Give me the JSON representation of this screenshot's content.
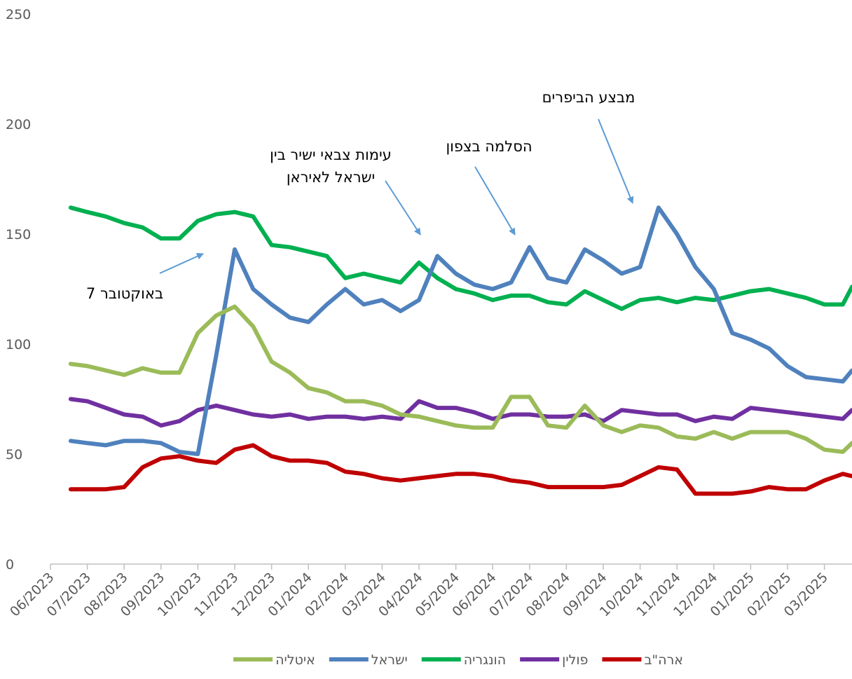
{
  "chart_data": {
    "type": "line",
    "x": [
      0.55,
      1.0,
      1.5,
      2.0,
      2.5,
      3.0,
      3.5,
      4.0,
      4.5,
      5.0,
      5.5,
      6.0,
      6.5,
      7.0,
      7.5,
      8.0,
      8.5,
      9.0,
      9.5,
      10.0,
      10.5,
      11.0,
      11.5,
      12.0,
      12.5,
      13.0,
      13.5,
      14.0,
      14.5,
      15.0,
      15.5,
      16.0,
      16.5,
      17.0,
      17.5,
      18.0,
      18.5,
      19.0,
      19.5,
      20.0,
      20.5,
      21.0,
      21.5,
      21.75
    ],
    "xlim": [
      0,
      21.75
    ],
    "xticks": [
      {
        "value": 0,
        "label": "06/2023"
      },
      {
        "value": 1,
        "label": "07/2023"
      },
      {
        "value": 2,
        "label": "08/2023"
      },
      {
        "value": 3,
        "label": "09/2023"
      },
      {
        "value": 4,
        "label": "10/2023"
      },
      {
        "value": 5,
        "label": "11/2023"
      },
      {
        "value": 6,
        "label": "12/2023"
      },
      {
        "value": 7,
        "label": "01/2024"
      },
      {
        "value": 8,
        "label": "02/2024"
      },
      {
        "value": 9,
        "label": "03/2024"
      },
      {
        "value": 10,
        "label": "04/2024"
      },
      {
        "value": 11,
        "label": "05/2024"
      },
      {
        "value": 12,
        "label": "06/2024"
      },
      {
        "value": 13,
        "label": "07/2024"
      },
      {
        "value": 14,
        "label": "08/2024"
      },
      {
        "value": 15,
        "label": "09/2024"
      },
      {
        "value": 16,
        "label": "10/2024"
      },
      {
        "value": 17,
        "label": "11/2024"
      },
      {
        "value": 18,
        "label": "12/2024"
      },
      {
        "value": 19,
        "label": "01/2025"
      },
      {
        "value": 20,
        "label": "02/2025"
      },
      {
        "value": 21,
        "label": "03/2025"
      }
    ],
    "ylim": [
      0,
      250
    ],
    "yticks": [
      0,
      50,
      100,
      150,
      200,
      250
    ],
    "grid": false,
    "legend": "bottom",
    "series": [
      {
        "name": "ארה\"ב",
        "color": "#c00000",
        "values": [
          34,
          34,
          34,
          35,
          44,
          48,
          49,
          47,
          46,
          52,
          54,
          49,
          47,
          47,
          46,
          42,
          41,
          39,
          38,
          39,
          40,
          41,
          41,
          40,
          38,
          37,
          35,
          35,
          35,
          35,
          36,
          40,
          44,
          43,
          32,
          32,
          32,
          33,
          35,
          34,
          34,
          38,
          41,
          40
        ]
      },
      {
        "name": "פולין",
        "color": "#7030a0",
        "values": [
          75,
          74,
          71,
          68,
          67,
          63,
          65,
          70,
          72,
          70,
          68,
          67,
          68,
          66,
          67,
          67,
          66,
          67,
          66,
          74,
          71,
          71,
          69,
          66,
          68,
          68,
          67,
          67,
          68,
          65,
          70,
          69,
          68,
          68,
          65,
          67,
          66,
          71,
          70,
          69,
          68,
          67,
          66,
          70
        ]
      },
      {
        "name": "הונגריה",
        "color": "#00b050",
        "values": [
          162,
          160,
          158,
          155,
          153,
          148,
          148,
          156,
          159,
          160,
          158,
          145,
          144,
          142,
          140,
          130,
          132,
          130,
          128,
          137,
          130,
          125,
          123,
          120,
          122,
          122,
          119,
          118,
          124,
          120,
          116,
          120,
          121,
          119,
          121,
          120,
          122,
          124,
          125,
          123,
          121,
          118,
          118,
          126
        ]
      },
      {
        "name": "ישראל",
        "color": "#4f81bd",
        "values": [
          56,
          55,
          54,
          56,
          56,
          55,
          51,
          50,
          95,
          143,
          125,
          118,
          112,
          110,
          118,
          125,
          118,
          120,
          115,
          120,
          140,
          132,
          127,
          125,
          128,
          144,
          130,
          128,
          143,
          138,
          132,
          135,
          162,
          150,
          135,
          125,
          105,
          102,
          98,
          90,
          85,
          84,
          83,
          88
        ]
      },
      {
        "name": "איטליה",
        "color": "#9bbb59",
        "values": [
          91,
          90,
          88,
          86,
          89,
          87,
          87,
          105,
          113,
          117,
          108,
          92,
          87,
          80,
          78,
          74,
          74,
          72,
          68,
          67,
          65,
          63,
          62,
          62,
          76,
          76,
          63,
          62,
          72,
          63,
          60,
          63,
          62,
          58,
          57,
          60,
          57,
          60,
          60,
          60,
          57,
          52,
          51,
          55
        ]
      }
    ],
    "annotations": [
      {
        "lines": [
          "7 באוקטובר"
        ]
      },
      {
        "lines": [
          "עימות צבאי ישיר בין",
          "ישראל לאיראן"
        ]
      },
      {
        "lines": [
          "הסלמה בצפון"
        ]
      },
      {
        "lines": [
          "מבצע הביפרים"
        ]
      }
    ]
  }
}
